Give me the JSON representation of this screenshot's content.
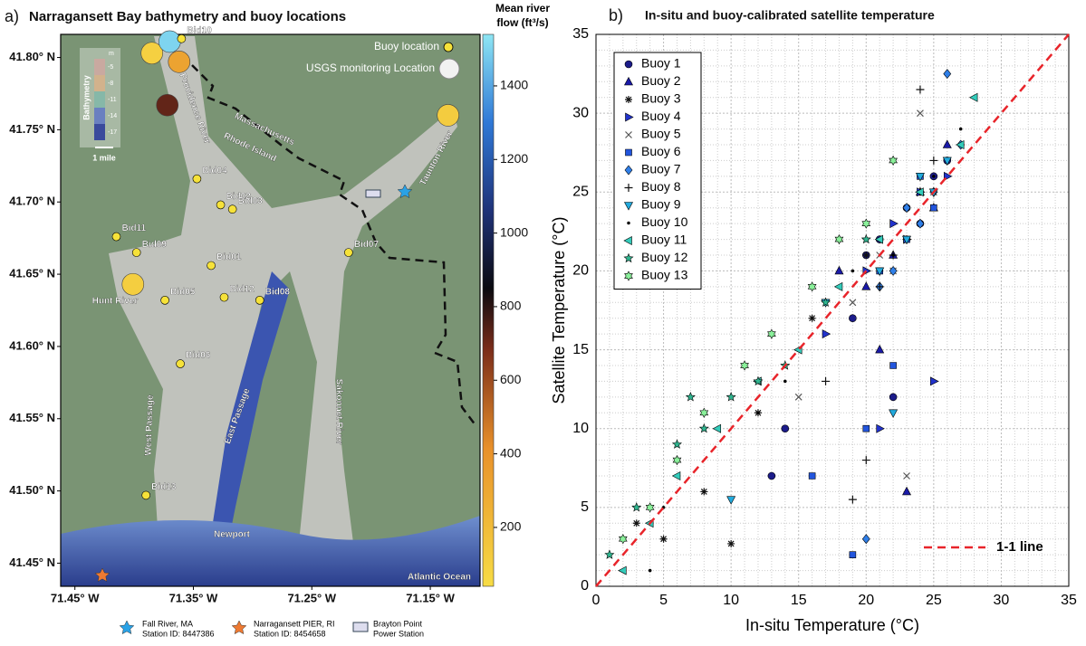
{
  "map": {
    "panel": "a)",
    "title": "Narragansett Bay bathymetry and buoy locations",
    "xlim": [
      -71.462,
      -71.108
    ],
    "ylim": [
      41.434,
      41.816
    ],
    "xticks": [
      {
        "value": -71.45,
        "label": "71.45° W"
      },
      {
        "value": -71.35,
        "label": "71.35° W"
      },
      {
        "value": -71.25,
        "label": "71.25° W"
      },
      {
        "value": -71.15,
        "label": "71.15° W"
      }
    ],
    "yticks": [
      {
        "value": 41.45,
        "label": "41.45° N"
      },
      {
        "value": 41.5,
        "label": "41.50° N"
      },
      {
        "value": 41.55,
        "label": "41.55° N"
      },
      {
        "value": 41.6,
        "label": "41.60° N"
      },
      {
        "value": 41.65,
        "label": "41.65° N"
      },
      {
        "value": 41.7,
        "label": "41.70° N"
      },
      {
        "value": 41.75,
        "label": "41.75° N"
      },
      {
        "value": 41.8,
        "label": "41.80° N"
      }
    ],
    "buoys": [
      {
        "name": "Bid10",
        "lon": -71.36,
        "lat": 41.813
      },
      {
        "name": "Bid04",
        "lon": -71.347,
        "lat": 41.716
      },
      {
        "name": "Bid02",
        "lon": -71.327,
        "lat": 41.698
      },
      {
        "name": "Bid03",
        "lon": -71.317,
        "lat": 41.695
      },
      {
        "name": "Bid11",
        "lon": -71.415,
        "lat": 41.676
      },
      {
        "name": "Bid09",
        "lon": -71.398,
        "lat": 41.665
      },
      {
        "name": "Bid01",
        "lon": -71.335,
        "lat": 41.656
      },
      {
        "name": "Bid07",
        "lon": -71.219,
        "lat": 41.665
      },
      {
        "name": "Bid05",
        "lon": -71.374,
        "lat": 41.632
      },
      {
        "name": "Bid12",
        "lon": -71.324,
        "lat": 41.634
      },
      {
        "name": "Bid08",
        "lon": -71.294,
        "lat": 41.632
      },
      {
        "name": "Bid06",
        "lon": -71.361,
        "lat": 41.588
      },
      {
        "name": "Bid13",
        "lon": -71.39,
        "lat": 41.497
      }
    ],
    "river_sites": [
      {
        "lon": -71.385,
        "lat": 41.803,
        "flow": 100
      },
      {
        "lon": -71.37,
        "lat": 41.811,
        "flow": 1500
      },
      {
        "lon": -71.362,
        "lat": 41.797,
        "flow": 320
      },
      {
        "lon": -71.372,
        "lat": 41.767,
        "flow": 720
      },
      {
        "lon": -71.135,
        "lat": 41.76,
        "flow": 120
      },
      {
        "lon": -71.401,
        "lat": 41.643,
        "flow": 110
      }
    ],
    "colorbar_title": [
      "Mean river",
      "flow (ft³/s)"
    ],
    "clim": [
      40,
      1540
    ],
    "cticks": [
      200,
      400,
      600,
      800,
      1000,
      1200,
      1400
    ],
    "legend": [
      "Buoy location",
      "USGS monitoring Location"
    ],
    "labels": {
      "providence": "Providence River",
      "mass": "Massachusetts",
      "ri": "Rhode Island",
      "taunton": "Taunton River",
      "hunt": "Hunt River",
      "west": "West Passage",
      "east": "East Passage",
      "sakonnet": "Sakonnet River",
      "newport": "Newport",
      "ocean": "Atlantic Ocean",
      "mile": "1 mile",
      "bathy": "Bathymetry",
      "unit": "m",
      "depths": [
        "-5",
        "-8",
        "-11",
        "-14",
        "-17"
      ]
    },
    "stations": [
      {
        "lines": [
          "Fall River, MA",
          "Station ID: 8447386"
        ]
      },
      {
        "lines": [
          "Narragansett PIER, RI",
          "Station ID: 8454658"
        ]
      },
      {
        "lines": [
          "Brayton Point",
          "Power Station"
        ]
      }
    ]
  },
  "chart_data": {
    "type": "scatter",
    "panel": "b)",
    "title": "In-situ and buoy-calibrated satellite temperature",
    "x_label": "In-situ Temperature (°C)",
    "y_label": "Satellite Temperature (°C)",
    "xlim": [
      0,
      35
    ],
    "ylim": [
      0,
      35
    ],
    "xticks": [
      0,
      5,
      10,
      15,
      20,
      25,
      30,
      35
    ],
    "yticks": [
      0,
      5,
      10,
      15,
      20,
      25,
      30,
      35
    ],
    "grid": true,
    "legend_position": "upper-left",
    "reference_line": {
      "label": "1-1 line",
      "color": "#e8242a"
    },
    "series": [
      {
        "name": "Buoy 1",
        "color": "#1c1c8a",
        "marker": "circle",
        "x": [
          21,
          23,
          24,
          25,
          19,
          22,
          14,
          26,
          20,
          13
        ],
        "values": [
          22,
          24,
          23,
          26,
          17,
          12,
          10,
          27,
          21,
          7
        ]
      },
      {
        "name": "Buoy 2",
        "color": "#1a1aa8",
        "marker": "triangle-up",
        "x": [
          22,
          24,
          20,
          23,
          25,
          18,
          21,
          26
        ],
        "values": [
          21,
          25,
          19,
          6,
          24,
          20,
          15,
          28
        ]
      },
      {
        "name": "Buoy 3",
        "color": "#111111",
        "marker": "asterisk",
        "x": [
          3,
          5,
          8,
          12,
          16,
          20,
          24,
          10
        ],
        "values": [
          4,
          3,
          6,
          11,
          17,
          21,
          25,
          2.7
        ]
      },
      {
        "name": "Buoy 4",
        "color": "#2233cc",
        "marker": "triangle-right",
        "x": [
          20,
          22,
          24,
          25,
          17,
          23,
          21,
          26
        ],
        "values": [
          20,
          23,
          25,
          13,
          16,
          22,
          10,
          26
        ]
      },
      {
        "name": "Buoy 5",
        "color": "#555555",
        "marker": "x",
        "x": [
          15,
          21,
          24,
          22,
          19,
          25,
          23
        ],
        "values": [
          12,
          21,
          30,
          20,
          18,
          25,
          7
        ]
      },
      {
        "name": "Buoy 6",
        "color": "#2255dd",
        "marker": "square",
        "x": [
          21,
          23,
          25,
          19,
          22,
          24,
          20,
          16
        ],
        "values": [
          20,
          22,
          24,
          2,
          14,
          26,
          10,
          7
        ]
      },
      {
        "name": "Buoy 7",
        "color": "#2f7fe8",
        "marker": "diamond",
        "x": [
          22,
          24,
          25,
          26,
          23,
          21,
          27,
          20
        ],
        "values": [
          20,
          23,
          25,
          32.5,
          24,
          19,
          28,
          3
        ]
      },
      {
        "name": "Buoy 8",
        "color": "#111111",
        "marker": "plus",
        "x": [
          19,
          21,
          23,
          24,
          22,
          25,
          20,
          17
        ],
        "values": [
          5.5,
          19,
          22,
          31.5,
          21,
          27,
          8,
          13
        ]
      },
      {
        "name": "Buoy 9",
        "color": "#22aadd",
        "marker": "triangle-down",
        "x": [
          17,
          21,
          23,
          25,
          26,
          24,
          22,
          10
        ],
        "values": [
          18,
          20,
          22,
          25,
          27,
          26,
          11,
          5.5
        ]
      },
      {
        "name": "Buoy 10",
        "color": "#000000",
        "marker": "dot",
        "x": [
          1,
          5,
          9,
          14,
          19,
          22,
          25,
          27,
          12,
          4
        ],
        "values": [
          2,
          5,
          10,
          13,
          20,
          21,
          26,
          29,
          11,
          1
        ]
      },
      {
        "name": "Buoy 11",
        "color": "#33ccbb",
        "marker": "triangle-left",
        "x": [
          2,
          4,
          6,
          9,
          12,
          15,
          18,
          21,
          24,
          27,
          28
        ],
        "values": [
          1,
          4,
          7,
          10,
          13,
          15,
          19,
          22,
          25,
          28,
          31
        ]
      },
      {
        "name": "Buoy 12",
        "color": "#2fb58f",
        "marker": "pentagram",
        "x": [
          3,
          6,
          8,
          10,
          12,
          14,
          17,
          20,
          1,
          7
        ],
        "values": [
          5,
          9,
          10,
          12,
          13,
          14,
          18,
          22,
          2,
          12
        ]
      },
      {
        "name": "Buoy 13",
        "color": "#8af09a",
        "marker": "hexagram",
        "x": [
          2,
          4,
          6,
          8,
          11,
          13,
          16,
          18,
          20,
          22
        ],
        "values": [
          3,
          5,
          8,
          11,
          14,
          16,
          19,
          22,
          23,
          27
        ]
      }
    ]
  }
}
